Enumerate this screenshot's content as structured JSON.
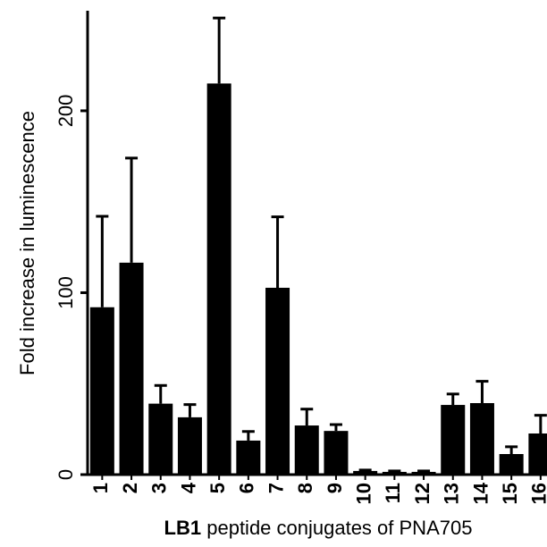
{
  "chart_data": {
    "type": "bar",
    "y_label": "Fold increase in luminescence",
    "x_label_bold": "LB1",
    "x_label": "peptide conjugates of PNA705",
    "categories": [
      "1",
      "2",
      "3",
      "4",
      "5",
      "6",
      "7",
      "8",
      "9",
      "10",
      "11",
      "12",
      "13",
      "14",
      "15",
      "16"
    ],
    "values": [
      92,
      116.5,
      39,
      31.5,
      215,
      18.7,
      102.7,
      27,
      24,
      2,
      1.5,
      1.5,
      38.3,
      39.3,
      11.3,
      22.6
    ],
    "errors": [
      50,
      57.5,
      10,
      7,
      36,
      5,
      39,
      9,
      3.5,
      0.5,
      0.5,
      0.5,
      6,
      12,
      4,
      10
    ],
    "color": "#000000",
    "ylim": [
      0,
      255
    ],
    "yticks": [
      0,
      100,
      200
    ]
  }
}
